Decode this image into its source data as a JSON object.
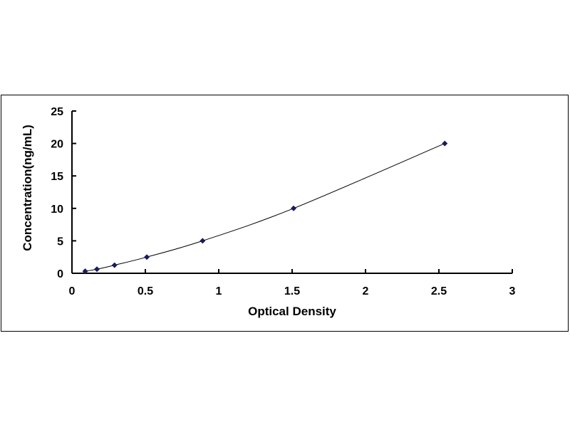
{
  "chart_data": {
    "type": "scatter",
    "title": "",
    "xlabel": "Optical Density",
    "ylabel": "Concentration(ng/mL)",
    "xlim": [
      0,
      3
    ],
    "ylim": [
      0,
      25
    ],
    "xticks": [
      "0",
      "0.5",
      "1",
      "1.5",
      "2",
      "2.5",
      "3"
    ],
    "yticks": [
      "0",
      "5",
      "10",
      "15",
      "20",
      "25"
    ],
    "grid": false,
    "legend": "none",
    "series": [
      {
        "x": [
          0.09,
          0.17,
          0.29,
          0.51,
          0.89,
          1.51,
          2.54
        ],
        "y": [
          0.313,
          0.625,
          1.25,
          2.5,
          5,
          10,
          20
        ],
        "marker": "diamond",
        "color": "#1a1a5e",
        "trendline": "smooth curve",
        "line_color": "#000000"
      }
    ]
  }
}
